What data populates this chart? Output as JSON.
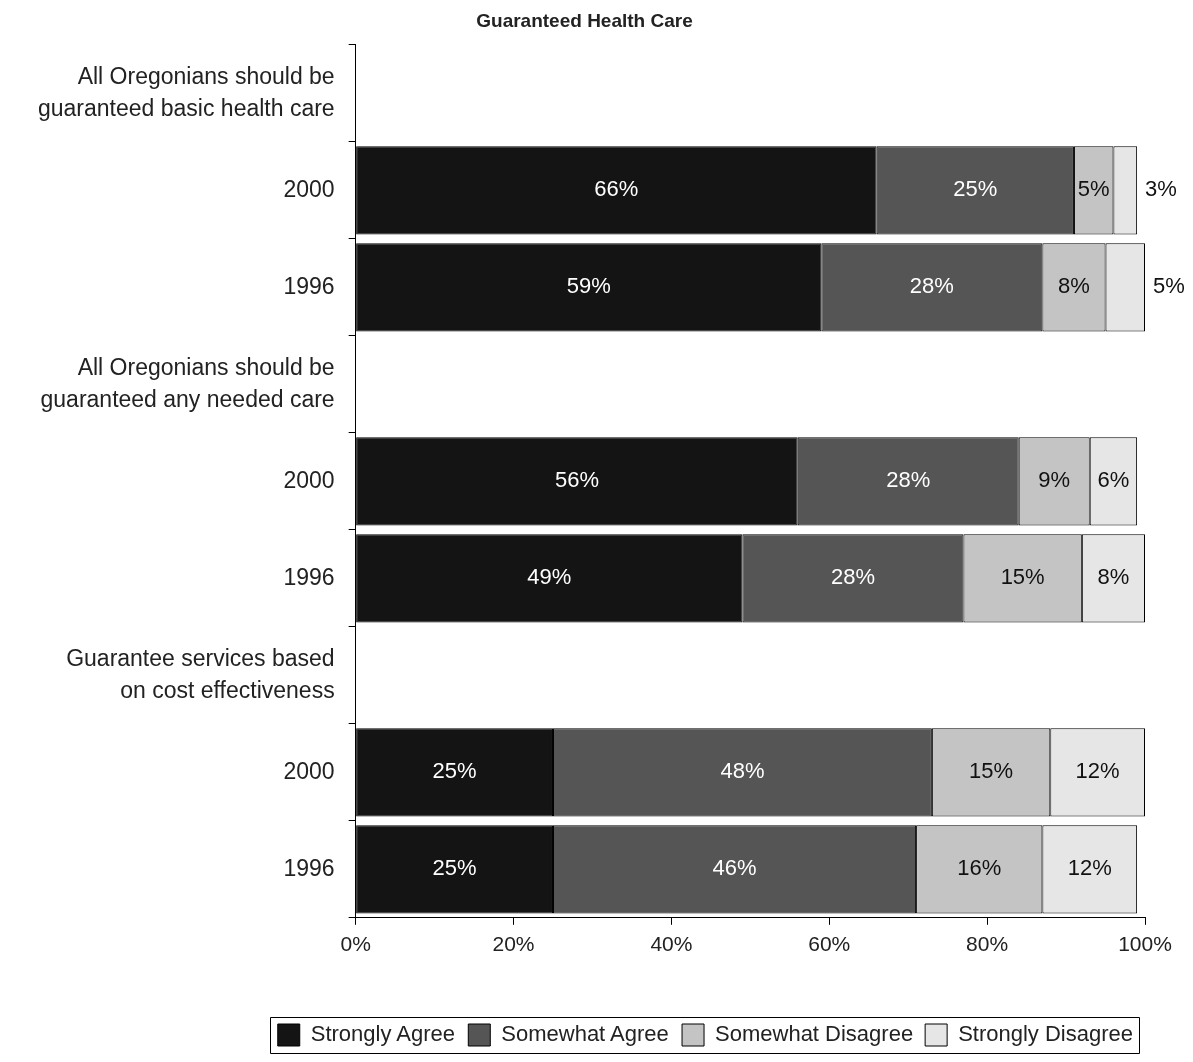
{
  "chart_data": {
    "type": "bar",
    "orientation": "horizontal",
    "stacked": true,
    "title": "Guaranteed Health Care",
    "categories": [
      "All Oregonians should be guaranteed basic health care",
      "2000",
      "1996",
      "All Oregonians should be guaranteed any needed care",
      "2000",
      "1996",
      "Guarantee services based on cost effectiveness",
      "2000",
      "1996"
    ],
    "series": [
      {
        "name": "Strongly Agree",
        "color": "#141414",
        "values": [
          null,
          66,
          59,
          null,
          56,
          49,
          null,
          25,
          25
        ],
        "value_labels": [
          null,
          "66%",
          "59%",
          null,
          "56%",
          "49%",
          null,
          "25%",
          "25%"
        ]
      },
      {
        "name": "Somewhat Agree",
        "color": "#555555",
        "values": [
          null,
          25,
          28,
          null,
          28,
          28,
          null,
          48,
          46
        ],
        "value_labels": [
          null,
          "25%",
          "28%",
          null,
          "28%",
          "28%",
          null,
          "48%",
          "46%"
        ]
      },
      {
        "name": "Somewhat Disagree",
        "color": "#c4c4c4",
        "values": [
          null,
          5,
          8,
          null,
          9,
          15,
          null,
          15,
          16
        ],
        "value_labels": [
          null,
          "5%",
          "8%",
          null,
          "9%",
          "15%",
          null,
          "15%",
          "16%"
        ]
      },
      {
        "name": "Strongly Disagree",
        "color": "#e6e6e6",
        "values": [
          null,
          3,
          5,
          null,
          6,
          8,
          null,
          12,
          12
        ],
        "value_labels": [
          null,
          "3%",
          "5%",
          null,
          "6%",
          "8%",
          null,
          "12%",
          "12%"
        ]
      }
    ],
    "xlim": [
      0,
      100
    ],
    "xticks": [
      {
        "value": 0,
        "label": "0%"
      },
      {
        "value": 20,
        "label": "20%"
      },
      {
        "value": 40,
        "label": "40%"
      },
      {
        "value": 60,
        "label": "60%"
      },
      {
        "value": 80,
        "label": "80%"
      },
      {
        "value": 100,
        "label": "100%"
      }
    ],
    "grid": false,
    "legend": "bottom"
  }
}
